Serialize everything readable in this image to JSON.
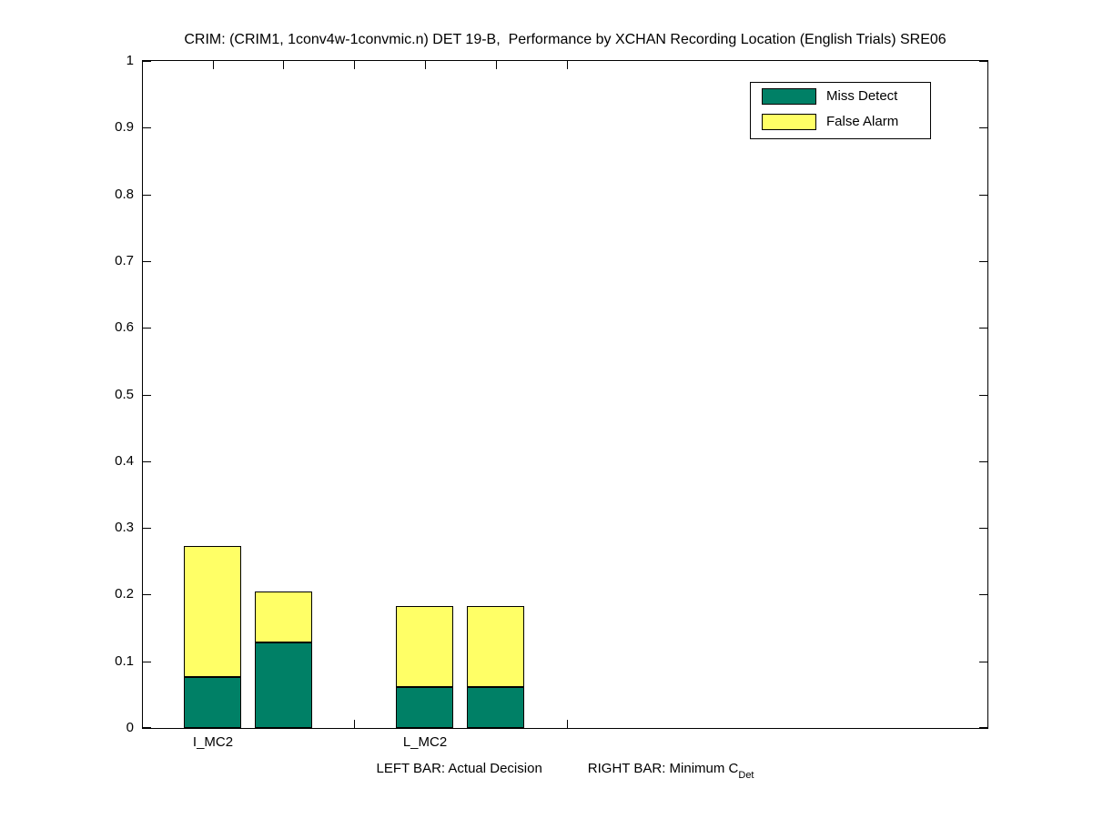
{
  "chart_data": {
    "type": "bar",
    "stacked": true,
    "title": "CRIM: (CRIM1, 1conv4w-1convmic.n) DET 19-B,  Performance by XCHAN Recording Location (English Trials) SRE06",
    "xlabel": {
      "left": "LEFT BAR: Actual Decision",
      "right": "RIGHT BAR: Minimum C",
      "subscript": "Det"
    },
    "ylabel": "",
    "ylim": [
      0,
      1
    ],
    "yticks": [
      0,
      0.1,
      0.2,
      0.3,
      0.4,
      0.5,
      0.6,
      0.7,
      0.8,
      0.9,
      1
    ],
    "x_slots": 6,
    "grid": false,
    "legend": {
      "position": "top-right",
      "entries": [
        {
          "label": "Miss Detect",
          "color": "#008066"
        },
        {
          "label": "False Alarm",
          "color": "#ffff66"
        }
      ]
    },
    "groups": [
      {
        "label": "I_MC2",
        "slot": 0,
        "bars": [
          {
            "name": "Actual Decision",
            "miss_detect": 0.076,
            "false_alarm": 0.197
          },
          {
            "name": "Minimum CDet",
            "miss_detect": 0.128,
            "false_alarm": 0.077
          }
        ]
      },
      {
        "label": "L_MC2",
        "slot": 3,
        "bars": [
          {
            "name": "Actual Decision",
            "miss_detect": 0.062,
            "false_alarm": 0.122
          },
          {
            "name": "Minimum CDet",
            "miss_detect": 0.062,
            "false_alarm": 0.122
          }
        ]
      }
    ],
    "colors": {
      "bar_edge": "#000000",
      "axis": "#000000",
      "background": "#ffffff"
    }
  }
}
